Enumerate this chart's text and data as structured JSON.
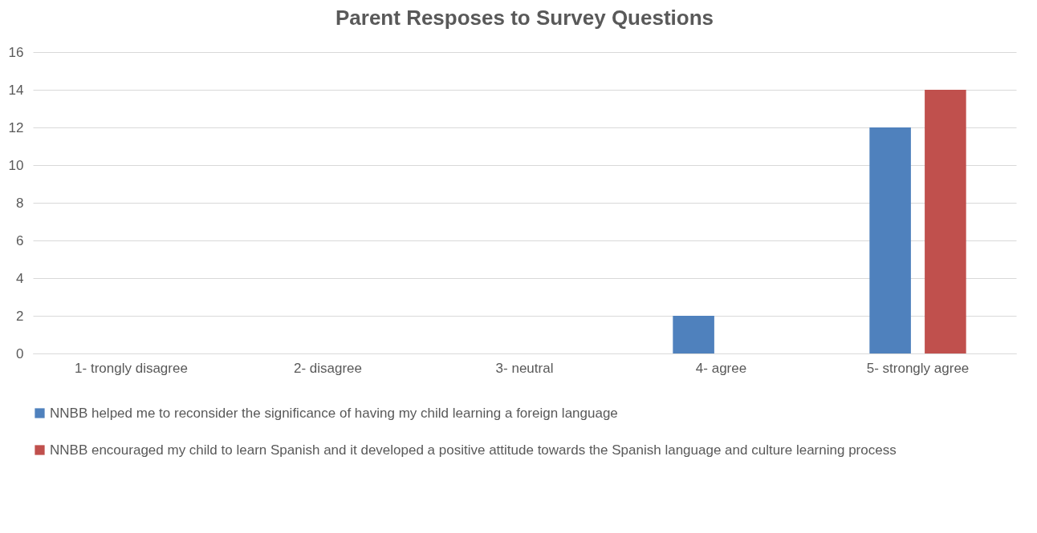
{
  "chart_data": {
    "type": "bar",
    "title": "Parent Resposes to Survey Questions",
    "categories": [
      "1- trongly disagree",
      "2- disagree",
      "3- neutral",
      "4- agree",
      "5- strongly agree"
    ],
    "series": [
      {
        "name": "NNBB  helped me to reconsider the significance of having my child learning a foreign language",
        "color": "#4f81bd",
        "values": [
          0,
          0,
          0,
          2,
          12
        ]
      },
      {
        "name": "NNBB encouraged my child to learn Spanish and it developed a positive attitude towards the Spanish language and culture learning process",
        "color": "#c0504d",
        "values": [
          0,
          0,
          0,
          0,
          14
        ]
      }
    ],
    "ylim": [
      0,
      16
    ],
    "yticks": [
      0,
      2,
      4,
      6,
      8,
      10,
      12,
      14,
      16
    ],
    "grid": "y",
    "legend": "bottom"
  }
}
